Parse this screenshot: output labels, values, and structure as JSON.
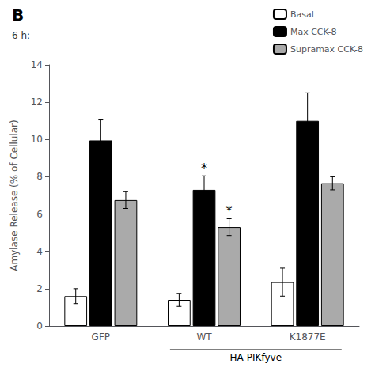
{
  "chart_data": {
    "type": "bar",
    "title": "B",
    "subtitle": "6 h:",
    "categories": [
      "GFP",
      "WT",
      "K1877E"
    ],
    "series": [
      {
        "name": "Basal",
        "color": "#ffffff",
        "values": [
          1.6,
          1.4,
          2.35
        ],
        "errors": [
          0.4,
          0.35,
          0.75
        ]
      },
      {
        "name": "Max CCK-8",
        "color": "#000000",
        "values": [
          9.95,
          7.3,
          11.0
        ],
        "errors": [
          1.1,
          0.75,
          1.5
        ]
      },
      {
        "name": "Supramax CCK-8",
        "color": "#aaaaaa",
        "values": [
          6.75,
          5.3,
          7.65
        ],
        "errors": [
          0.45,
          0.45,
          0.35
        ]
      }
    ],
    "ylabel": "Amylase Release (% of Cellular)",
    "ylim": [
      0,
      14
    ],
    "yticks": [
      0,
      2,
      4,
      6,
      8,
      10,
      12,
      14
    ],
    "grid": false,
    "legend": "upper right",
    "annotations": [
      {
        "text": "*",
        "category": "WT",
        "series": "Max CCK-8"
      },
      {
        "text": "*",
        "category": "WT",
        "series": "Supramax CCK-8"
      },
      {
        "text": "HA-PIKfyve",
        "categories": [
          "WT",
          "K1877E"
        ]
      }
    ]
  }
}
